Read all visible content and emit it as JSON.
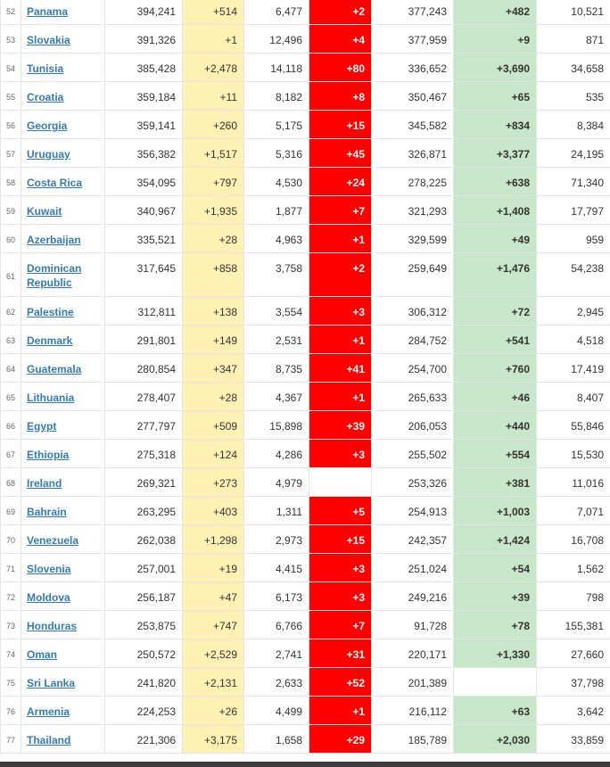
{
  "colors": {
    "link": "#337ab7",
    "new_cases_bg": "#fff0b3",
    "new_deaths_bg": "#ff0000",
    "new_recovered_bg": "#c8e6c9"
  },
  "rows": [
    {
      "rank": "52",
      "country": "Panama",
      "total_cases": "394,241",
      "new_cases": "+514",
      "total_deaths": "6,477",
      "new_deaths": "+2",
      "total_recovered": "377,243",
      "new_recovered": "+482",
      "active": "10,521"
    },
    {
      "rank": "53",
      "country": "Slovakia",
      "total_cases": "391,326",
      "new_cases": "+1",
      "total_deaths": "12,496",
      "new_deaths": "+4",
      "total_recovered": "377,959",
      "new_recovered": "+9",
      "active": "871"
    },
    {
      "rank": "54",
      "country": "Tunisia",
      "total_cases": "385,428",
      "new_cases": "+2,478",
      "total_deaths": "14,118",
      "new_deaths": "+80",
      "total_recovered": "336,652",
      "new_recovered": "+3,690",
      "active": "34,658"
    },
    {
      "rank": "55",
      "country": "Croatia",
      "total_cases": "359,184",
      "new_cases": "+11",
      "total_deaths": "8,182",
      "new_deaths": "+8",
      "total_recovered": "350,467",
      "new_recovered": "+65",
      "active": "535"
    },
    {
      "rank": "56",
      "country": "Georgia",
      "total_cases": "359,141",
      "new_cases": "+260",
      "total_deaths": "5,175",
      "new_deaths": "+15",
      "total_recovered": "345,582",
      "new_recovered": "+834",
      "active": "8,384"
    },
    {
      "rank": "57",
      "country": "Uruguay",
      "total_cases": "356,382",
      "new_cases": "+1,517",
      "total_deaths": "5,316",
      "new_deaths": "+45",
      "total_recovered": "326,871",
      "new_recovered": "+3,377",
      "active": "24,195"
    },
    {
      "rank": "58",
      "country": "Costa Rica",
      "total_cases": "354,095",
      "new_cases": "+797",
      "total_deaths": "4,530",
      "new_deaths": "+24",
      "total_recovered": "278,225",
      "new_recovered": "+638",
      "active": "71,340"
    },
    {
      "rank": "59",
      "country": "Kuwait",
      "total_cases": "340,967",
      "new_cases": "+1,935",
      "total_deaths": "1,877",
      "new_deaths": "+7",
      "total_recovered": "321,293",
      "new_recovered": "+1,408",
      "active": "17,797"
    },
    {
      "rank": "60",
      "country": "Azerbaijan",
      "total_cases": "335,521",
      "new_cases": "+28",
      "total_deaths": "4,963",
      "new_deaths": "+1",
      "total_recovered": "329,599",
      "new_recovered": "+49",
      "active": "959"
    },
    {
      "rank": "61",
      "country": "Dominican Republic",
      "total_cases": "317,645",
      "new_cases": "+858",
      "total_deaths": "3,758",
      "new_deaths": "+2",
      "total_recovered": "259,649",
      "new_recovered": "+1,476",
      "active": "54,238"
    },
    {
      "rank": "62",
      "country": "Palestine",
      "total_cases": "312,811",
      "new_cases": "+138",
      "total_deaths": "3,554",
      "new_deaths": "+3",
      "total_recovered": "306,312",
      "new_recovered": "+72",
      "active": "2,945"
    },
    {
      "rank": "63",
      "country": "Denmark",
      "total_cases": "291,801",
      "new_cases": "+149",
      "total_deaths": "2,531",
      "new_deaths": "+1",
      "total_recovered": "284,752",
      "new_recovered": "+541",
      "active": "4,518"
    },
    {
      "rank": "64",
      "country": "Guatemala",
      "total_cases": "280,854",
      "new_cases": "+347",
      "total_deaths": "8,735",
      "new_deaths": "+41",
      "total_recovered": "254,700",
      "new_recovered": "+760",
      "active": "17,419"
    },
    {
      "rank": "65",
      "country": "Lithuania",
      "total_cases": "278,407",
      "new_cases": "+28",
      "total_deaths": "4,367",
      "new_deaths": "+1",
      "total_recovered": "265,633",
      "new_recovered": "+46",
      "active": "8,407"
    },
    {
      "rank": "66",
      "country": "Egypt",
      "total_cases": "277,797",
      "new_cases": "+509",
      "total_deaths": "15,898",
      "new_deaths": "+39",
      "total_recovered": "206,053",
      "new_recovered": "+440",
      "active": "55,846"
    },
    {
      "rank": "67",
      "country": "Ethiopia",
      "total_cases": "275,318",
      "new_cases": "+124",
      "total_deaths": "4,286",
      "new_deaths": "+3",
      "total_recovered": "255,502",
      "new_recovered": "+554",
      "active": "15,530"
    },
    {
      "rank": "68",
      "country": "Ireland",
      "total_cases": "269,321",
      "new_cases": "+273",
      "total_deaths": "4,979",
      "new_deaths": "",
      "total_recovered": "253,326",
      "new_recovered": "+381",
      "active": "11,016"
    },
    {
      "rank": "69",
      "country": "Bahrain",
      "total_cases": "263,295",
      "new_cases": "+403",
      "total_deaths": "1,311",
      "new_deaths": "+5",
      "total_recovered": "254,913",
      "new_recovered": "+1,003",
      "active": "7,071"
    },
    {
      "rank": "70",
      "country": "Venezuela",
      "total_cases": "262,038",
      "new_cases": "+1,298",
      "total_deaths": "2,973",
      "new_deaths": "+15",
      "total_recovered": "242,357",
      "new_recovered": "+1,424",
      "active": "16,708"
    },
    {
      "rank": "71",
      "country": "Slovenia",
      "total_cases": "257,001",
      "new_cases": "+19",
      "total_deaths": "4,415",
      "new_deaths": "+3",
      "total_recovered": "251,024",
      "new_recovered": "+54",
      "active": "1,562"
    },
    {
      "rank": "72",
      "country": "Moldova",
      "total_cases": "256,187",
      "new_cases": "+47",
      "total_deaths": "6,173",
      "new_deaths": "+3",
      "total_recovered": "249,216",
      "new_recovered": "+39",
      "active": "798"
    },
    {
      "rank": "73",
      "country": "Honduras",
      "total_cases": "253,875",
      "new_cases": "+747",
      "total_deaths": "6,766",
      "new_deaths": "+7",
      "total_recovered": "91,728",
      "new_recovered": "+78",
      "active": "155,381"
    },
    {
      "rank": "74",
      "country": "Oman",
      "total_cases": "250,572",
      "new_cases": "+2,529",
      "total_deaths": "2,741",
      "new_deaths": "+31",
      "total_recovered": "220,171",
      "new_recovered": "+1,330",
      "active": "27,660"
    },
    {
      "rank": "75",
      "country": "Sri Lanka",
      "total_cases": "241,820",
      "new_cases": "+2,131",
      "total_deaths": "2,633",
      "new_deaths": "+52",
      "total_recovered": "201,389",
      "new_recovered": "",
      "active": "37,798"
    },
    {
      "rank": "76",
      "country": "Armenia",
      "total_cases": "224,253",
      "new_cases": "+26",
      "total_deaths": "4,499",
      "new_deaths": "+1",
      "total_recovered": "216,112",
      "new_recovered": "+63",
      "active": "3,642"
    },
    {
      "rank": "77",
      "country": "Thailand",
      "total_cases": "221,306",
      "new_cases": "+3,175",
      "total_deaths": "1,658",
      "new_deaths": "+29",
      "total_recovered": "185,789",
      "new_recovered": "+2,030",
      "active": "33,859"
    }
  ]
}
